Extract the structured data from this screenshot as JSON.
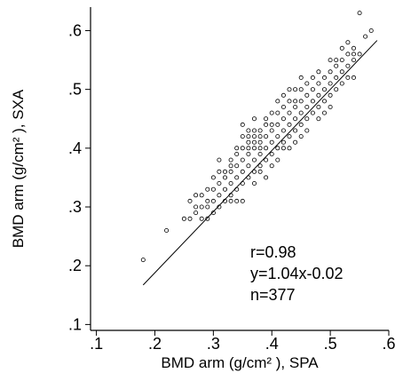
{
  "chart_data": {
    "type": "scatter",
    "title": "",
    "xlabel": "BMD arm (g/cm² ), SPA",
    "ylabel": "BMD arm (g/cm² ), SXA",
    "xlim": [
      0.09,
      0.6
    ],
    "ylim": [
      0.09,
      0.64
    ],
    "x_ticks": [
      0.1,
      0.2,
      0.3,
      0.4,
      0.5,
      0.6
    ],
    "x_tick_labels": [
      ".1",
      ".2",
      ".3",
      ".4",
      ".5",
      ".6"
    ],
    "y_ticks": [
      0.1,
      0.2,
      0.3,
      0.4,
      0.5,
      0.6
    ],
    "y_tick_labels": [
      ".1",
      ".2",
      ".3",
      ".4",
      ".5",
      ".6"
    ],
    "grid": false,
    "legend": "none",
    "marker": "hollow-circle",
    "regression_line": {
      "slope": 1.04,
      "intercept": -0.02,
      "x_range": [
        0.18,
        0.58
      ]
    },
    "annotations": [
      "r=0.98",
      "y=1.04x-0.02",
      "n=377"
    ],
    "points": [
      [
        0.18,
        0.21
      ],
      [
        0.22,
        0.26
      ],
      [
        0.25,
        0.28
      ],
      [
        0.26,
        0.28
      ],
      [
        0.26,
        0.31
      ],
      [
        0.27,
        0.3
      ],
      [
        0.27,
        0.29
      ],
      [
        0.28,
        0.3
      ],
      [
        0.28,
        0.32
      ],
      [
        0.28,
        0.28
      ],
      [
        0.29,
        0.3
      ],
      [
        0.29,
        0.33
      ],
      [
        0.29,
        0.31
      ],
      [
        0.3,
        0.31
      ],
      [
        0.3,
        0.33
      ],
      [
        0.3,
        0.29
      ],
      [
        0.31,
        0.32
      ],
      [
        0.31,
        0.34
      ],
      [
        0.31,
        0.36
      ],
      [
        0.32,
        0.33
      ],
      [
        0.32,
        0.35
      ],
      [
        0.32,
        0.36
      ],
      [
        0.33,
        0.34
      ],
      [
        0.33,
        0.36
      ],
      [
        0.33,
        0.32
      ],
      [
        0.33,
        0.38
      ],
      [
        0.34,
        0.35
      ],
      [
        0.34,
        0.37
      ],
      [
        0.34,
        0.33
      ],
      [
        0.34,
        0.39
      ],
      [
        0.35,
        0.36
      ],
      [
        0.35,
        0.38
      ],
      [
        0.35,
        0.4
      ],
      [
        0.35,
        0.34
      ],
      [
        0.35,
        0.44
      ],
      [
        0.36,
        0.37
      ],
      [
        0.36,
        0.39
      ],
      [
        0.36,
        0.41
      ],
      [
        0.36,
        0.35
      ],
      [
        0.36,
        0.43
      ],
      [
        0.37,
        0.38
      ],
      [
        0.37,
        0.4
      ],
      [
        0.37,
        0.42
      ],
      [
        0.37,
        0.36
      ],
      [
        0.37,
        0.41
      ],
      [
        0.38,
        0.39
      ],
      [
        0.38,
        0.41
      ],
      [
        0.38,
        0.37
      ],
      [
        0.38,
        0.43
      ],
      [
        0.38,
        0.4
      ],
      [
        0.39,
        0.4
      ],
      [
        0.39,
        0.42
      ],
      [
        0.39,
        0.38
      ],
      [
        0.39,
        0.35
      ],
      [
        0.4,
        0.41
      ],
      [
        0.4,
        0.43
      ],
      [
        0.4,
        0.39
      ],
      [
        0.4,
        0.44
      ],
      [
        0.41,
        0.42
      ],
      [
        0.41,
        0.44
      ],
      [
        0.41,
        0.4
      ],
      [
        0.41,
        0.46
      ],
      [
        0.42,
        0.43
      ],
      [
        0.42,
        0.45
      ],
      [
        0.42,
        0.41
      ],
      [
        0.42,
        0.47
      ],
      [
        0.43,
        0.44
      ],
      [
        0.43,
        0.46
      ],
      [
        0.43,
        0.42
      ],
      [
        0.43,
        0.48
      ],
      [
        0.44,
        0.45
      ],
      [
        0.44,
        0.47
      ],
      [
        0.44,
        0.5
      ],
      [
        0.44,
        0.43
      ],
      [
        0.45,
        0.46
      ],
      [
        0.45,
        0.48
      ],
      [
        0.45,
        0.44
      ],
      [
        0.45,
        0.5
      ],
      [
        0.46,
        0.47
      ],
      [
        0.46,
        0.49
      ],
      [
        0.46,
        0.45
      ],
      [
        0.47,
        0.48
      ],
      [
        0.47,
        0.5
      ],
      [
        0.47,
        0.46
      ],
      [
        0.48,
        0.49
      ],
      [
        0.48,
        0.51
      ],
      [
        0.48,
        0.47
      ],
      [
        0.49,
        0.5
      ],
      [
        0.49,
        0.52
      ],
      [
        0.49,
        0.48
      ],
      [
        0.5,
        0.51
      ],
      [
        0.5,
        0.53
      ],
      [
        0.5,
        0.49
      ],
      [
        0.51,
        0.52
      ],
      [
        0.51,
        0.54
      ],
      [
        0.51,
        0.5
      ],
      [
        0.52,
        0.53
      ],
      [
        0.52,
        0.55
      ],
      [
        0.52,
        0.57
      ],
      [
        0.53,
        0.54
      ],
      [
        0.53,
        0.56
      ],
      [
        0.53,
        0.52
      ],
      [
        0.54,
        0.55
      ],
      [
        0.54,
        0.57
      ],
      [
        0.54,
        0.56
      ],
      [
        0.55,
        0.63
      ],
      [
        0.55,
        0.56
      ],
      [
        0.56,
        0.59
      ],
      [
        0.57,
        0.6
      ],
      [
        0.54,
        0.52
      ],
      [
        0.5,
        0.55
      ],
      [
        0.42,
        0.4
      ],
      [
        0.34,
        0.4
      ],
      [
        0.37,
        0.34
      ],
      [
        0.3,
        0.35
      ],
      [
        0.33,
        0.31
      ],
      [
        0.44,
        0.41
      ],
      [
        0.46,
        0.51
      ],
      [
        0.39,
        0.44
      ],
      [
        0.36,
        0.42
      ],
      [
        0.41,
        0.38
      ],
      [
        0.48,
        0.53
      ],
      [
        0.31,
        0.3
      ],
      [
        0.38,
        0.36
      ],
      [
        0.43,
        0.4
      ],
      [
        0.52,
        0.51
      ],
      [
        0.27,
        0.32
      ],
      [
        0.4,
        0.37
      ],
      [
        0.35,
        0.42
      ],
      [
        0.45,
        0.42
      ],
      [
        0.49,
        0.46
      ],
      [
        0.32,
        0.31
      ],
      [
        0.29,
        0.28
      ],
      [
        0.37,
        0.43
      ],
      [
        0.42,
        0.49
      ],
      [
        0.51,
        0.55
      ],
      [
        0.33,
        0.37
      ],
      [
        0.4,
        0.46
      ],
      [
        0.46,
        0.43
      ],
      [
        0.53,
        0.58
      ],
      [
        0.34,
        0.31
      ],
      [
        0.39,
        0.45
      ],
      [
        0.44,
        0.48
      ],
      [
        0.36,
        0.4
      ],
      [
        0.41,
        0.48
      ],
      [
        0.47,
        0.52
      ],
      [
        0.5,
        0.47
      ],
      [
        0.38,
        0.42
      ],
      [
        0.43,
        0.5
      ],
      [
        0.31,
        0.38
      ],
      [
        0.35,
        0.31
      ],
      [
        0.45,
        0.52
      ],
      [
        0.48,
        0.45
      ],
      [
        0.37,
        0.45
      ]
    ]
  }
}
